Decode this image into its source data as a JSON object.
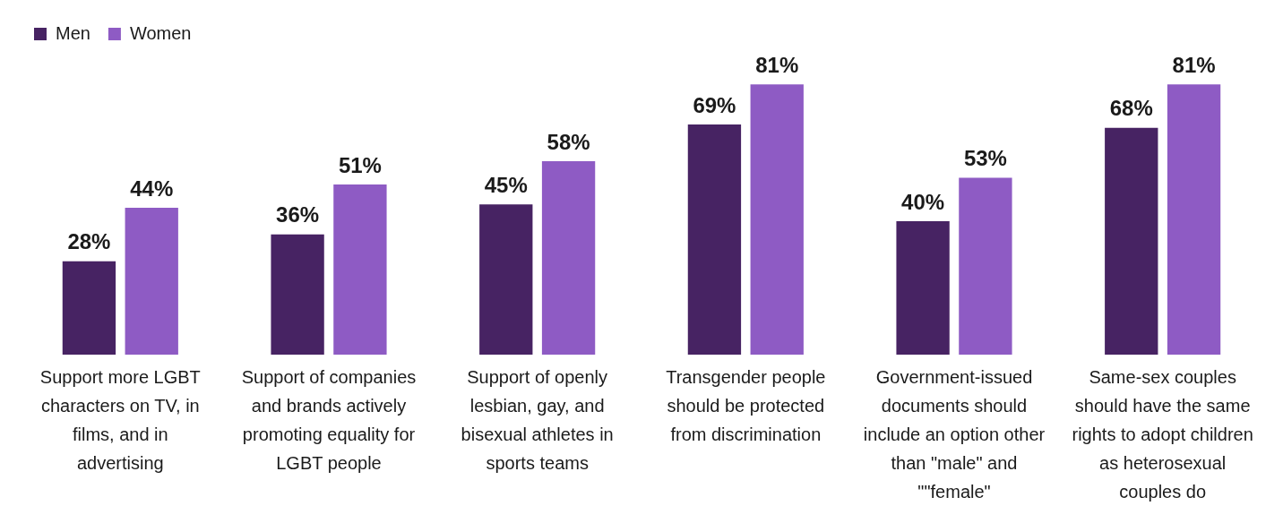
{
  "chart_data": {
    "type": "bar",
    "categories": [
      "Support more LGBT characters on TV, in films, and in advertising",
      "Support of companies and brands actively promoting equality for LGBT people",
      "Support of openly lesbian, gay, and bisexual athletes in sports teams",
      "Transgender people should be protected from discrimination",
      "Government-issued documents should include an option other than \"male\" and \"\"female\"",
      "Same-sex couples should have the same rights to adopt children as heterosexual couples do"
    ],
    "series": [
      {
        "name": "Men",
        "color": "#472363",
        "values": [
          28,
          36,
          45,
          69,
          40,
          68
        ],
        "value_labels": [
          "28%",
          "36%",
          "45%",
          "69%",
          "40%",
          "68%"
        ]
      },
      {
        "name": "Women",
        "color": "#8e5bc4",
        "values": [
          44,
          51,
          58,
          81,
          53,
          81
        ],
        "value_labels": [
          "44%",
          "51%",
          "58%",
          "81%",
          "53%",
          "81%"
        ]
      }
    ],
    "legend": "top left",
    "grid": false
  }
}
